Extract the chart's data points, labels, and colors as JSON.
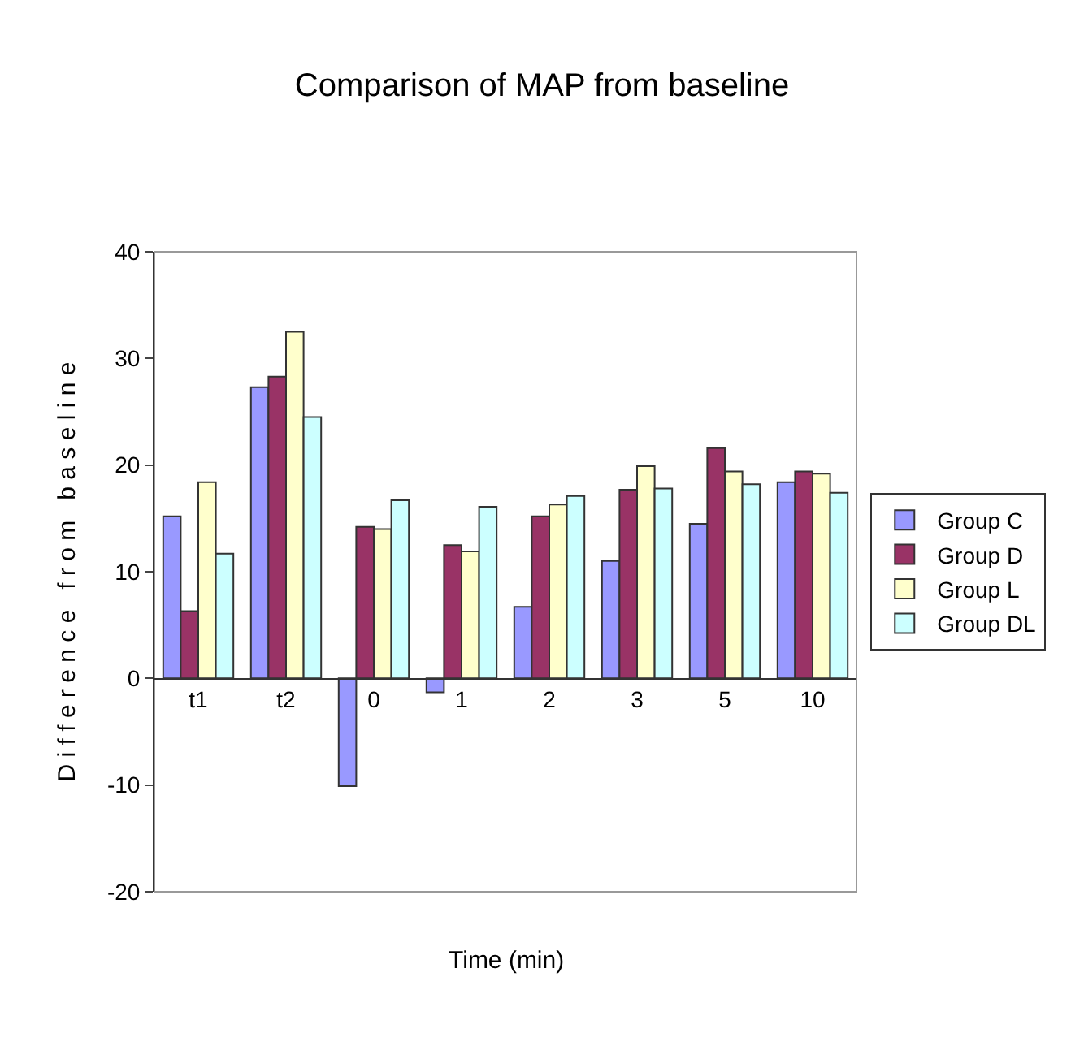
{
  "chart_data": {
    "type": "bar",
    "title": "Comparison of MAP from baseline",
    "xlabel": "Time (min)",
    "ylabel": "D i f f e r e n c e   f r o m   b a s e l i n e",
    "categories": [
      "t1",
      "t2",
      "0",
      "1",
      "2",
      "3",
      "5",
      "10"
    ],
    "series": [
      {
        "name": "Group C",
        "color": "#9999ff",
        "values": [
          15.2,
          27.3,
          -10.1,
          -1.3,
          6.7,
          11.0,
          14.5,
          18.4
        ]
      },
      {
        "name": "Group D",
        "color": "#993366",
        "values": [
          6.3,
          28.3,
          14.2,
          12.5,
          15.2,
          17.7,
          21.6,
          19.4
        ]
      },
      {
        "name": "Group L",
        "color": "#ffffcc",
        "values": [
          18.4,
          32.5,
          14.0,
          11.9,
          16.3,
          19.9,
          19.4,
          19.2
        ]
      },
      {
        "name": "Group DL",
        "color": "#ccffff",
        "values": [
          11.7,
          24.5,
          16.7,
          16.1,
          17.1,
          17.8,
          18.2,
          17.4
        ]
      }
    ],
    "ylim": [
      -20,
      40
    ],
    "yticks": [
      -20,
      -10,
      0,
      10,
      20,
      30,
      40
    ],
    "grid": false,
    "legend": "right"
  }
}
